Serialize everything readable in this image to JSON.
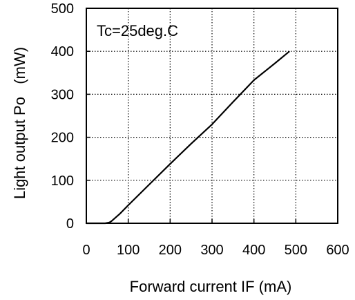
{
  "chart_data": {
    "type": "line",
    "xlabel": "Forward current IF (mA)",
    "ylabel": "Light output Po   (mW)",
    "xlim": [
      0,
      600
    ],
    "ylim": [
      0,
      500
    ],
    "x_ticks": [
      "0",
      "100",
      "200",
      "300",
      "400",
      "500",
      "600"
    ],
    "y_ticks": [
      "0",
      "100",
      "200",
      "300",
      "400",
      "500"
    ],
    "grid": true,
    "annotations": [
      "Tc=25deg.C"
    ],
    "series": [
      {
        "x": [
          0,
          30,
          45,
          55,
          60,
          80,
          100,
          150,
          200,
          250,
          300,
          350,
          400,
          450,
          485
        ],
        "y": [
          0,
          0,
          0,
          2,
          5,
          22,
          42,
          90,
          138,
          185,
          230,
          282,
          333,
          372,
          400
        ]
      }
    ]
  }
}
